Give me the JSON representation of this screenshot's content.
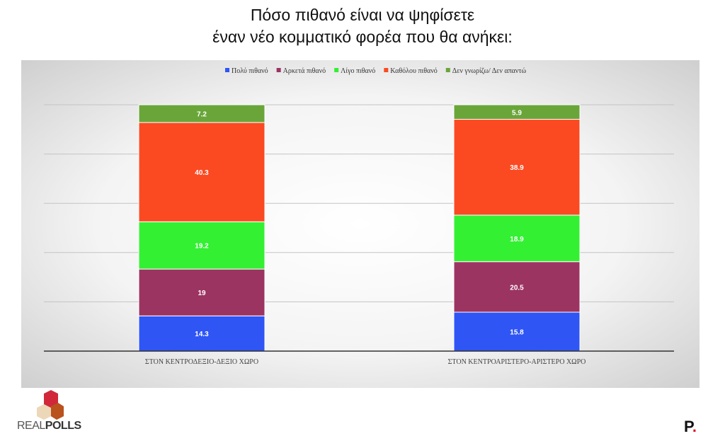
{
  "title_lines": [
    "Πόσο πιθανό είναι να ψηφίσετε",
    "έναν νέο κομματικό φορέα που θα ανήκει:"
  ],
  "chart_data": {
    "type": "bar",
    "stacked": true,
    "categories": [
      "ΣΤΟΝ ΚΕΝΤΡΟΔΕΞΙΟ-ΔΕΞΙΟ ΧΩΡΟ",
      "ΣΤΟΝ ΚΕΝΤΡΟΑΡΙΣΤΕΡΟ-ΑΡΙΣΤΕΡΟ ΧΩΡΟ"
    ],
    "series": [
      {
        "name": "Πολύ πιθανό",
        "values": [
          14.3,
          15.8
        ],
        "color": "#2f55f5"
      },
      {
        "name": "Αρκετά πιθανό",
        "values": [
          19,
          20.5
        ],
        "color": "#9c3462"
      },
      {
        "name": "Λίγο πιθανό",
        "values": [
          19.2,
          18.9
        ],
        "color": "#33f033"
      },
      {
        "name": "Καθόλου πιθανό",
        "values": [
          40.3,
          38.9
        ],
        "color": "#fb4a22"
      },
      {
        "name": "Δεν γνωρίζω/ Δεν απαντώ",
        "values": [
          7.2,
          5.9
        ],
        "color": "#6aa53a"
      }
    ],
    "ylim": [
      0,
      100
    ],
    "grid": true,
    "legend": "top",
    "data_label_color": "#ffffff"
  },
  "logos": {
    "left": "REALPOLLS",
    "right": "P."
  }
}
